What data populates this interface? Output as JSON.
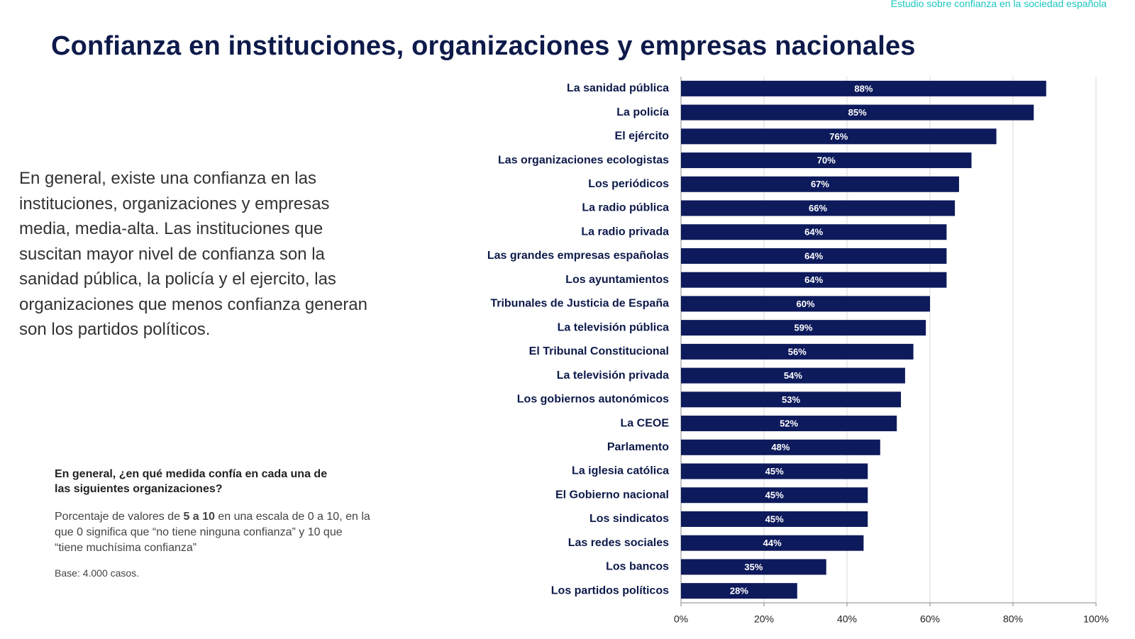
{
  "header": {
    "study": "Estudio sobre confianza en la sociedad española",
    "title": "Confianza en instituciones, organizaciones y empresas nacionales"
  },
  "body": {
    "lines": [
      "En general, existe una confianza en las",
      "instituciones, organizaciones y empresas",
      "media, media-alta. Las instituciones que",
      "suscitan mayor nivel de confianza son la",
      "sanidad pública, la policía y el ejercito, las",
      "organizaciones que menos confianza generan",
      "son los partidos políticos."
    ]
  },
  "note": {
    "question": [
      "En general, ¿en qué medida confía en cada una de",
      "las siguientes organizaciones?"
    ],
    "description": {
      "before": "Porcentaje de valores de ",
      "bold": "5 a 10",
      "after": " en una escala de 0 a 10, en la que 0 significa que “no tiene ninguna confianza” y 10 que “tiene muchísima confianza”"
    },
    "base": "Base: 4.000 casos."
  },
  "chart_data": {
    "type": "bar",
    "orientation": "horizontal",
    "color": "#0d1a5c",
    "grid": true,
    "categories": [
      "La sanidad pública",
      "La policía",
      "El ejército",
      "Las organizaciones ecologistas",
      "Los periódicos",
      "La radio pública",
      "La radio privada",
      "Las grandes empresas españolas",
      "Los ayuntamientos",
      "Tribunales de Justicia de España",
      "La televisión pública",
      "El Tribunal Constitucional",
      "La televisión privada",
      "Los gobiernos autonómicos",
      "La CEOE",
      "Parlamento",
      "La iglesia católica",
      "El Gobierno nacional",
      "Los sindicatos",
      "Las redes sociales",
      "Los bancos",
      "Los partidos políticos"
    ],
    "values": [
      88,
      85,
      76,
      70,
      67,
      66,
      64,
      64,
      64,
      60,
      59,
      56,
      54,
      53,
      52,
      48,
      45,
      45,
      45,
      44,
      35,
      28
    ],
    "value_labels": [
      "88%",
      "85%",
      "76%",
      "70%",
      "67%",
      "66%",
      "64%",
      "64%",
      "64%",
      "60%",
      "59%",
      "56%",
      "54%",
      "53%",
      "52%",
      "48%",
      "45%",
      "45%",
      "45%",
      "44%",
      "35%",
      "28%"
    ],
    "xlim": [
      0,
      100
    ],
    "xticks": [
      {
        "value": 0,
        "label": "0%"
      },
      {
        "value": 20,
        "label": "20%"
      },
      {
        "value": 40,
        "label": "40%"
      },
      {
        "value": 60,
        "label": "60%"
      },
      {
        "value": 80,
        "label": "80%"
      },
      {
        "value": 100,
        "label": "100%"
      }
    ]
  }
}
